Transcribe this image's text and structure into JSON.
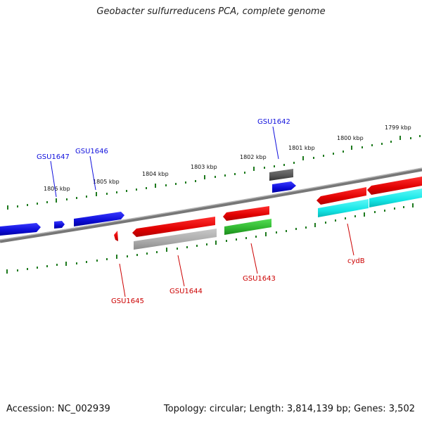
{
  "title": "Geobacter sulfurreducens PCA, complete genome",
  "footer": {
    "accession": "Accession: NC_002939",
    "stats": "Topology: circular; Length: 3,814,139 bp; Genes: 3,502"
  },
  "scale_labels": [
    "1806 kbp",
    "1805 kbp",
    "1804 kbp",
    "1803 kbp",
    "1802 kbp",
    "1801 kbp",
    "1800 kbp",
    "1799 kbp"
  ],
  "gene_labels": [
    {
      "text": "GSU1642",
      "strand": "forward"
    },
    {
      "text": "GSU1646",
      "strand": "forward"
    },
    {
      "text": "GSU1647",
      "strand": "forward"
    },
    {
      "text": "GSU1645",
      "strand": "reverse"
    },
    {
      "text": "GSU1644",
      "strand": "reverse"
    },
    {
      "text": "GSU1643",
      "strand": "reverse"
    },
    {
      "text": "cydB",
      "strand": "reverse"
    }
  ],
  "colors": {
    "forward_gene": "#1010dd",
    "reverse_gene": "#dd1010",
    "tick": "#1e7a1e",
    "backbone": "#888888",
    "rna": "#30c030",
    "other": "#11e0e0",
    "pseudo": "#a8a8a8",
    "misc": "#555555"
  }
}
